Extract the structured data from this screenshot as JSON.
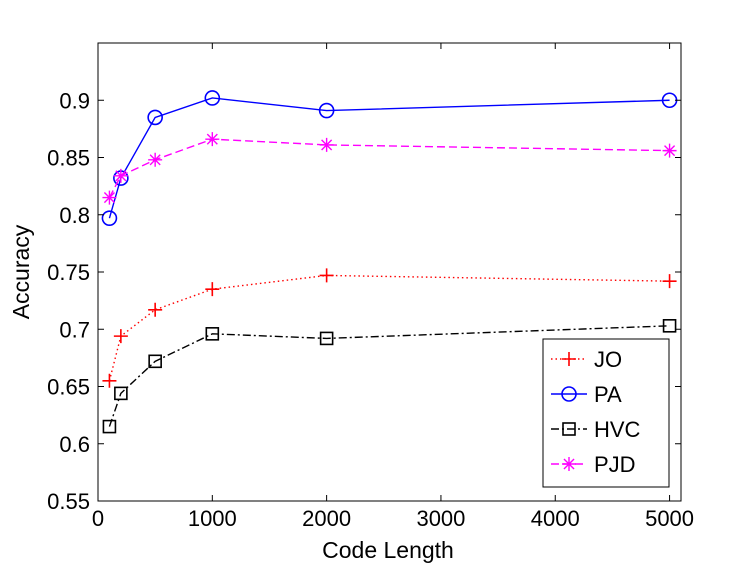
{
  "chart_data": {
    "type": "line",
    "xlabel": "Code Length",
    "ylabel": "Accuracy",
    "xlim": [
      0,
      5100
    ],
    "ylim": [
      0.55,
      0.95
    ],
    "xticks": [
      0,
      1000,
      2000,
      3000,
      4000,
      5000
    ],
    "xtick_labels": [
      "0",
      "1000",
      "2000",
      "3000",
      "4000",
      "5000"
    ],
    "yticks": [
      0.55,
      0.6,
      0.65,
      0.7,
      0.75,
      0.8,
      0.85,
      0.9
    ],
    "ytick_labels": [
      "0.55",
      "0.6",
      "0.65",
      "0.7",
      "0.75",
      "0.8",
      "0.85",
      "0.9"
    ],
    "grid": false,
    "legend_position": "bottom-right",
    "x": [
      100,
      200,
      500,
      1000,
      2000,
      5000
    ],
    "series": [
      {
        "name": "JO",
        "color": "#ff0000",
        "marker": "plus",
        "linestyle": "dotted",
        "values": [
          0.655,
          0.694,
          0.717,
          0.735,
          0.747,
          0.742
        ]
      },
      {
        "name": "PA",
        "color": "#0000ff",
        "marker": "circle",
        "linestyle": "solid",
        "values": [
          0.797,
          0.832,
          0.885,
          0.902,
          0.891,
          0.9
        ]
      },
      {
        "name": "HVC",
        "color": "#000000",
        "marker": "square",
        "linestyle": "dashdot",
        "values": [
          0.615,
          0.644,
          0.672,
          0.696,
          0.692,
          0.703
        ]
      },
      {
        "name": "PJD",
        "color": "#ff00ff",
        "marker": "star",
        "linestyle": "dashed",
        "values": [
          0.815,
          0.834,
          0.848,
          0.866,
          0.861,
          0.856
        ]
      }
    ]
  }
}
